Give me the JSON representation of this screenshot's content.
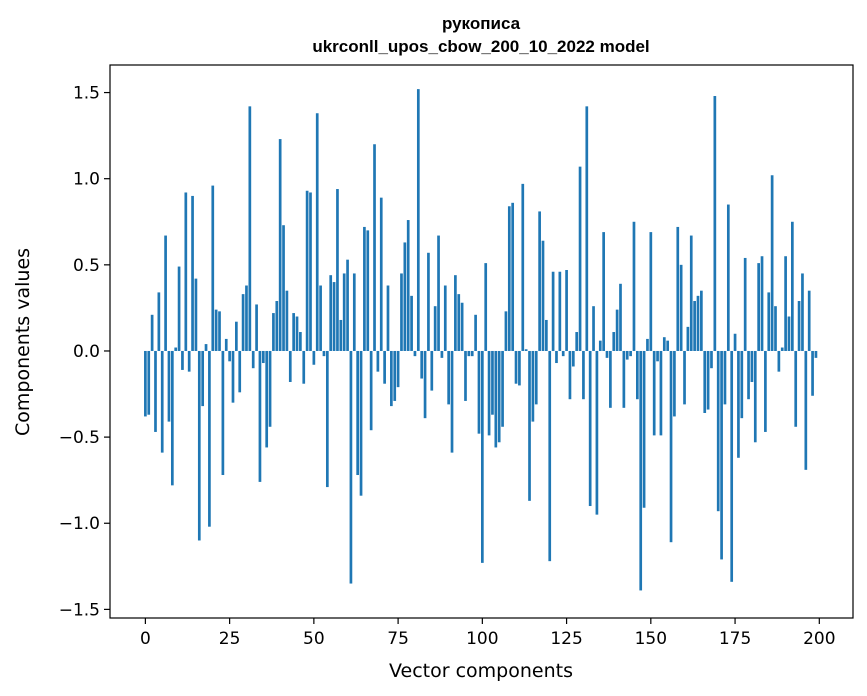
{
  "chart_data": {
    "type": "bar",
    "title_line1": "рукописа",
    "title_line2": "ukrconll_upos_cbow_200_10_2022 model",
    "xlabel": "Vector components",
    "ylabel": "Components values",
    "xlim": [
      -10.5,
      210
    ],
    "ylim": [
      -1.55,
      1.66
    ],
    "xticks": [
      0,
      25,
      50,
      75,
      100,
      125,
      150,
      175,
      200
    ],
    "yticks": [
      -1.5,
      -1.0,
      -0.5,
      0.0,
      0.5,
      1.0,
      1.5
    ],
    "ytick_labels": [
      "−1.5",
      "−1.0",
      "−0.5",
      "0.0",
      "0.5",
      "1.0",
      "1.5"
    ],
    "bar_color": "#1f77b4",
    "x": [
      0,
      1,
      2,
      3,
      4,
      5,
      6,
      7,
      8,
      9,
      10,
      11,
      12,
      13,
      14,
      15,
      16,
      17,
      18,
      19,
      20,
      21,
      22,
      23,
      24,
      25,
      26,
      27,
      28,
      29,
      30,
      31,
      32,
      33,
      34,
      35,
      36,
      37,
      38,
      39,
      40,
      41,
      42,
      43,
      44,
      45,
      46,
      47,
      48,
      49,
      50,
      51,
      52,
      53,
      54,
      55,
      56,
      57,
      58,
      59,
      60,
      61,
      62,
      63,
      64,
      65,
      66,
      67,
      68,
      69,
      70,
      71,
      72,
      73,
      74,
      75,
      76,
      77,
      78,
      79,
      80,
      81,
      82,
      83,
      84,
      85,
      86,
      87,
      88,
      89,
      90,
      91,
      92,
      93,
      94,
      95,
      96,
      97,
      98,
      99,
      100,
      101,
      102,
      103,
      104,
      105,
      106,
      107,
      108,
      109,
      110,
      111,
      112,
      113,
      114,
      115,
      116,
      117,
      118,
      119,
      120,
      121,
      122,
      123,
      124,
      125,
      126,
      127,
      128,
      129,
      130,
      131,
      132,
      133,
      134,
      135,
      136,
      137,
      138,
      139,
      140,
      141,
      142,
      143,
      144,
      145,
      146,
      147,
      148,
      149,
      150,
      151,
      152,
      153,
      154,
      155,
      156,
      157,
      158,
      159,
      160,
      161,
      162,
      163,
      164,
      165,
      166,
      167,
      168,
      169,
      170,
      171,
      172,
      173,
      174,
      175,
      176,
      177,
      178,
      179,
      180,
      181,
      182,
      183,
      184,
      185,
      186,
      187,
      188,
      189,
      190,
      191,
      192,
      193,
      194,
      195,
      196,
      197,
      198,
      199
    ],
    "values": [
      -0.38,
      -0.37,
      0.21,
      -0.47,
      0.34,
      -0.59,
      0.67,
      -0.41,
      -0.78,
      0.02,
      0.49,
      -0.11,
      0.92,
      -0.12,
      0.9,
      0.42,
      -1.1,
      -0.32,
      0.04,
      -1.02,
      0.96,
      0.24,
      0.23,
      -0.72,
      0.07,
      -0.06,
      -0.3,
      0.17,
      -0.24,
      0.33,
      0.38,
      1.42,
      -0.1,
      0.27,
      -0.76,
      -0.07,
      -0.56,
      -0.44,
      0.22,
      0.29,
      1.23,
      0.73,
      0.35,
      -0.18,
      0.22,
      0.2,
      0.11,
      -0.19,
      0.93,
      0.92,
      -0.08,
      1.38,
      0.38,
      -0.03,
      -0.79,
      0.44,
      0.4,
      0.94,
      0.18,
      0.45,
      0.53,
      -1.35,
      0.45,
      -0.72,
      -0.84,
      0.72,
      0.7,
      -0.46,
      1.2,
      -0.12,
      0.89,
      -0.19,
      0.38,
      -0.32,
      -0.29,
      -0.21,
      0.45,
      0.63,
      0.76,
      0.32,
      -0.03,
      1.52,
      -0.16,
      -0.39,
      0.57,
      -0.23,
      0.26,
      0.67,
      -0.04,
      0.38,
      -0.31,
      -0.59,
      0.44,
      0.33,
      0.28,
      -0.29,
      -0.03,
      -0.03,
      0.21,
      -0.48,
      -1.23,
      0.51,
      -0.49,
      -0.37,
      -0.56,
      -0.53,
      -0.44,
      0.23,
      0.84,
      0.86,
      -0.19,
      -0.2,
      0.97,
      0.01,
      -0.87,
      -0.41,
      -0.31,
      0.81,
      0.64,
      0.18,
      -1.22,
      0.46,
      -0.07,
      0.46,
      -0.03,
      0.47,
      -0.28,
      -0.09,
      0.11,
      1.07,
      -0.28,
      1.42,
      -0.9,
      0.26,
      -0.95,
      0.06,
      0.69,
      -0.04,
      -0.33,
      0.11,
      0.24,
      0.39,
      -0.33,
      -0.05,
      -0.03,
      0.75,
      -0.28,
      -1.39,
      -0.91,
      0.07,
      0.69,
      -0.49,
      -0.06,
      -0.49,
      0.08,
      0.06,
      -1.11,
      -0.38,
      0.72,
      0.5,
      -0.31,
      0.14,
      0.67,
      0.29,
      0.32,
      0.35,
      -0.36,
      -0.34,
      -0.1,
      1.48,
      -0.93,
      -1.21,
      -0.31,
      0.85,
      -1.34,
      0.1,
      -0.62,
      -0.39,
      0.54,
      -0.28,
      -0.18,
      -0.53,
      0.51,
      0.55,
      -0.47,
      0.34,
      1.02,
      0.26,
      -0.12,
      0.02,
      0.55,
      0.2,
      0.75,
      -0.44,
      0.29,
      0.45,
      -0.69,
      0.35,
      -0.26,
      -0.04
    ]
  }
}
